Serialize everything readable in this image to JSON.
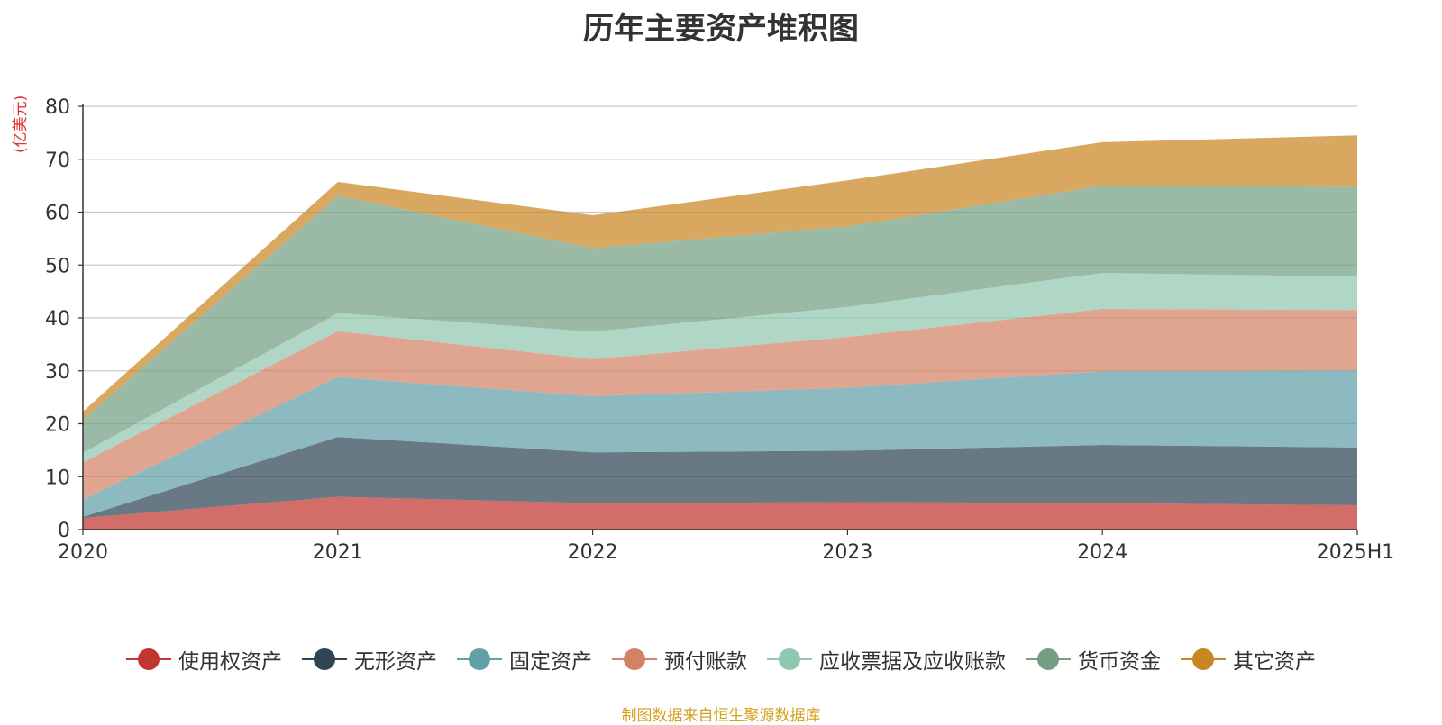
{
  "title": "历年主要资产堆积图",
  "unit": "(亿美元)",
  "source": "制图数据来自恒生聚源数据库",
  "chart_data": {
    "type": "area",
    "stacked": true,
    "title": "历年主要资产堆积图",
    "ylabel": "(亿美元)",
    "categories": [
      "2020",
      "2021",
      "2022",
      "2023",
      "2024",
      "2025H1"
    ],
    "ylim": [
      0,
      80
    ],
    "yticks": [
      0,
      10,
      20,
      30,
      40,
      50,
      60,
      70,
      80
    ],
    "grid": true,
    "legend_position": "bottom",
    "series": [
      {
        "name": "使用权资产",
        "color": "#c23531",
        "values": [
          2.2,
          6.2,
          5.0,
          5.2,
          5.0,
          4.6
        ]
      },
      {
        "name": "无形资产",
        "color": "#2f4554",
        "values": [
          0.2,
          11.3,
          9.6,
          9.7,
          11.0,
          10.9
        ]
      },
      {
        "name": "固定资产",
        "color": "#61a0a8",
        "values": [
          3.3,
          11.3,
          10.6,
          11.9,
          13.9,
          14.6
        ]
      },
      {
        "name": "预付账款",
        "color": "#d48265",
        "values": [
          7.0,
          8.7,
          7.0,
          9.6,
          11.8,
          11.4
        ]
      },
      {
        "name": "应收票据及应收账款",
        "color": "#91c7ae",
        "values": [
          1.8,
          3.4,
          5.2,
          5.7,
          6.8,
          6.3
        ]
      },
      {
        "name": "货币资金",
        "color": "#749f83",
        "values": [
          6.2,
          22.2,
          15.8,
          15.2,
          16.5,
          17.0
        ]
      },
      {
        "name": "其它资产",
        "color": "#ca8622",
        "values": [
          1.6,
          2.6,
          6.2,
          8.7,
          8.2,
          9.7
        ]
      }
    ]
  }
}
